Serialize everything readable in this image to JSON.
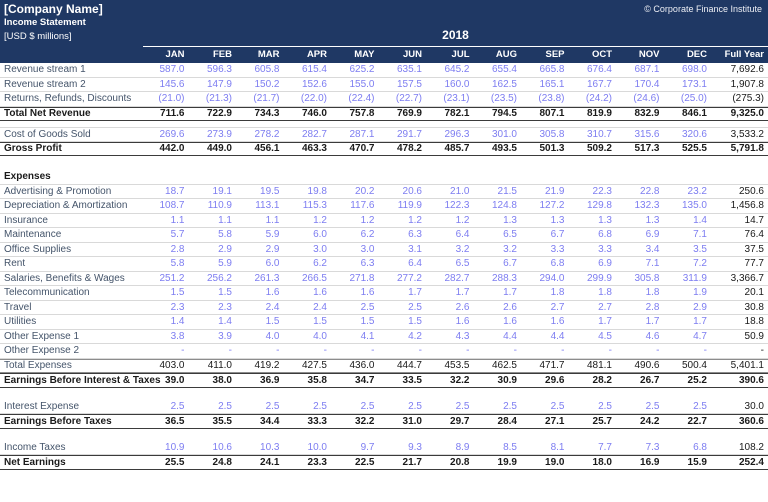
{
  "header": {
    "company": "[Company Name]",
    "report_title": "Income Statement",
    "units": "[USD $ millions]",
    "copyright": "© Corporate Finance Institute",
    "year": "2018"
  },
  "colors": {
    "header_bg": "#1F3864",
    "header_text": "#FFFFFF",
    "input_value_blue": "#7D7DF1",
    "label_text": "#44546A",
    "computed_text": "#1A1A1A",
    "grid_line": "#D9D9D9",
    "total_border": "#3B3B3B",
    "subtotal_border": "#8C8C8C"
  },
  "table": {
    "columns": [
      "JAN",
      "FEB",
      "MAR",
      "APR",
      "MAY",
      "JUN",
      "JUL",
      "AUG",
      "SEP",
      "OCT",
      "NOV",
      "DEC",
      "Full Year"
    ],
    "rows": [
      {
        "label": "Revenue stream 1",
        "style": "input",
        "months": [
          "587.0",
          "596.3",
          "605.8",
          "615.4",
          "625.2",
          "635.1",
          "645.2",
          "655.4",
          "665.8",
          "676.4",
          "687.1",
          "698.0"
        ],
        "full_year": "7,692.6"
      },
      {
        "label": "Revenue stream 2",
        "style": "input",
        "months": [
          "145.6",
          "147.9",
          "150.2",
          "152.6",
          "155.0",
          "157.5",
          "160.0",
          "162.5",
          "165.1",
          "167.7",
          "170.4",
          "173.1"
        ],
        "full_year": "1,907.8"
      },
      {
        "label": "Returns, Refunds, Discounts",
        "style": "input",
        "months": [
          "(21.0)",
          "(21.3)",
          "(21.7)",
          "(22.0)",
          "(22.4)",
          "(22.7)",
          "(23.1)",
          "(23.5)",
          "(23.8)",
          "(24.2)",
          "(24.6)",
          "(25.0)"
        ],
        "full_year": "(275.3)"
      },
      {
        "label": "Total Net Revenue",
        "style": "total",
        "months": [
          "711.6",
          "722.9",
          "734.3",
          "746.0",
          "757.8",
          "769.9",
          "782.1",
          "794.5",
          "807.1",
          "819.9",
          "832.9",
          "846.1"
        ],
        "full_year": "9,325.0"
      },
      {
        "style": "blank",
        "gap": "s"
      },
      {
        "label": "Cost of Goods Sold",
        "style": "input",
        "topline": true,
        "months": [
          "269.6",
          "273.9",
          "278.2",
          "282.7",
          "287.1",
          "291.7",
          "296.3",
          "301.0",
          "305.8",
          "310.7",
          "315.6",
          "320.6"
        ],
        "full_year": "3,533.2"
      },
      {
        "label": "Gross Profit",
        "style": "total",
        "months": [
          "442.0",
          "449.0",
          "456.1",
          "463.3",
          "470.7",
          "478.2",
          "485.7",
          "493.5",
          "501.3",
          "509.2",
          "517.3",
          "525.5"
        ],
        "full_year": "5,791.8"
      },
      {
        "style": "blank",
        "gap": "l"
      },
      {
        "label": "Expenses",
        "style": "section"
      },
      {
        "label": "Advertising & Promotion",
        "style": "input",
        "months": [
          "18.7",
          "19.1",
          "19.5",
          "19.8",
          "20.2",
          "20.6",
          "21.0",
          "21.5",
          "21.9",
          "22.3",
          "22.8",
          "23.2"
        ],
        "full_year": "250.6"
      },
      {
        "label": "Depreciation & Amortization",
        "style": "input",
        "months": [
          "108.7",
          "110.9",
          "113.1",
          "115.3",
          "117.6",
          "119.9",
          "122.3",
          "124.8",
          "127.2",
          "129.8",
          "132.3",
          "135.0"
        ],
        "full_year": "1,456.8"
      },
      {
        "label": "Insurance",
        "style": "input",
        "months": [
          "1.1",
          "1.1",
          "1.1",
          "1.2",
          "1.2",
          "1.2",
          "1.2",
          "1.3",
          "1.3",
          "1.3",
          "1.3",
          "1.4"
        ],
        "full_year": "14.7"
      },
      {
        "label": "Maintenance",
        "style": "input",
        "months": [
          "5.7",
          "5.8",
          "5.9",
          "6.0",
          "6.2",
          "6.3",
          "6.4",
          "6.5",
          "6.7",
          "6.8",
          "6.9",
          "7.1"
        ],
        "full_year": "76.4"
      },
      {
        "label": "Office Supplies",
        "style": "input",
        "months": [
          "2.8",
          "2.9",
          "2.9",
          "3.0",
          "3.0",
          "3.1",
          "3.2",
          "3.2",
          "3.3",
          "3.3",
          "3.4",
          "3.5"
        ],
        "full_year": "37.5"
      },
      {
        "label": "Rent",
        "style": "input",
        "months": [
          "5.8",
          "5.9",
          "6.0",
          "6.2",
          "6.3",
          "6.4",
          "6.5",
          "6.7",
          "6.8",
          "6.9",
          "7.1",
          "7.2"
        ],
        "full_year": "77.7"
      },
      {
        "label": "Salaries, Benefits & Wages",
        "style": "input",
        "months": [
          "251.2",
          "256.2",
          "261.3",
          "266.5",
          "271.8",
          "277.2",
          "282.7",
          "288.3",
          "294.0",
          "299.9",
          "305.8",
          "311.9"
        ],
        "full_year": "3,366.7"
      },
      {
        "label": "Telecommunication",
        "style": "input",
        "months": [
          "1.5",
          "1.5",
          "1.6",
          "1.6",
          "1.6",
          "1.7",
          "1.7",
          "1.7",
          "1.8",
          "1.8",
          "1.8",
          "1.9"
        ],
        "full_year": "20.1"
      },
      {
        "label": "Travel",
        "style": "input",
        "months": [
          "2.3",
          "2.3",
          "2.4",
          "2.4",
          "2.5",
          "2.5",
          "2.6",
          "2.6",
          "2.7",
          "2.7",
          "2.8",
          "2.9"
        ],
        "full_year": "30.8"
      },
      {
        "label": "Utilities",
        "style": "input",
        "months": [
          "1.4",
          "1.4",
          "1.5",
          "1.5",
          "1.5",
          "1.5",
          "1.6",
          "1.6",
          "1.6",
          "1.7",
          "1.7",
          "1.7"
        ],
        "full_year": "18.8"
      },
      {
        "label": "Other Expense 1",
        "style": "input",
        "months": [
          "3.8",
          "3.9",
          "4.0",
          "4.0",
          "4.1",
          "4.2",
          "4.3",
          "4.4",
          "4.4",
          "4.5",
          "4.6",
          "4.7"
        ],
        "full_year": "50.9"
      },
      {
        "label": "Other Expense 2",
        "style": "input",
        "months": [
          "-",
          "-",
          "-",
          "-",
          "-",
          "-",
          "-",
          "-",
          "-",
          "-",
          "-",
          "-"
        ],
        "full_year": "-"
      },
      {
        "label": "Total Expenses",
        "style": "subtotal",
        "months": [
          "403.0",
          "411.0",
          "419.2",
          "427.5",
          "436.0",
          "444.7",
          "453.5",
          "462.5",
          "471.7",
          "481.1",
          "490.6",
          "500.4"
        ],
        "full_year": "5,401.1"
      },
      {
        "label": "Earnings Before Interest & Taxes",
        "style": "total",
        "months": [
          "39.0",
          "38.0",
          "36.9",
          "35.8",
          "34.7",
          "33.5",
          "32.2",
          "30.9",
          "29.6",
          "28.2",
          "26.7",
          "25.2"
        ],
        "full_year": "390.6"
      },
      {
        "style": "blank",
        "gap": "m"
      },
      {
        "label": "Interest Expense",
        "style": "input",
        "months": [
          "2.5",
          "2.5",
          "2.5",
          "2.5",
          "2.5",
          "2.5",
          "2.5",
          "2.5",
          "2.5",
          "2.5",
          "2.5",
          "2.5"
        ],
        "full_year": "30.0"
      },
      {
        "label": "Earnings Before Taxes",
        "style": "total",
        "months": [
          "36.5",
          "35.5",
          "34.4",
          "33.3",
          "32.2",
          "31.0",
          "29.7",
          "28.4",
          "27.1",
          "25.7",
          "24.2",
          "22.7"
        ],
        "full_year": "360.6"
      },
      {
        "style": "blank",
        "gap": "m"
      },
      {
        "label": "Income Taxes",
        "style": "input",
        "months": [
          "10.9",
          "10.6",
          "10.3",
          "10.0",
          "9.7",
          "9.3",
          "8.9",
          "8.5",
          "8.1",
          "7.7",
          "7.3",
          "6.8"
        ],
        "full_year": "108.2"
      },
      {
        "label": "Net Earnings",
        "style": "total",
        "months": [
          "25.5",
          "24.8",
          "24.1",
          "23.3",
          "22.5",
          "21.7",
          "20.8",
          "19.9",
          "19.0",
          "18.0",
          "16.9",
          "15.9"
        ],
        "full_year": "252.4"
      }
    ]
  }
}
